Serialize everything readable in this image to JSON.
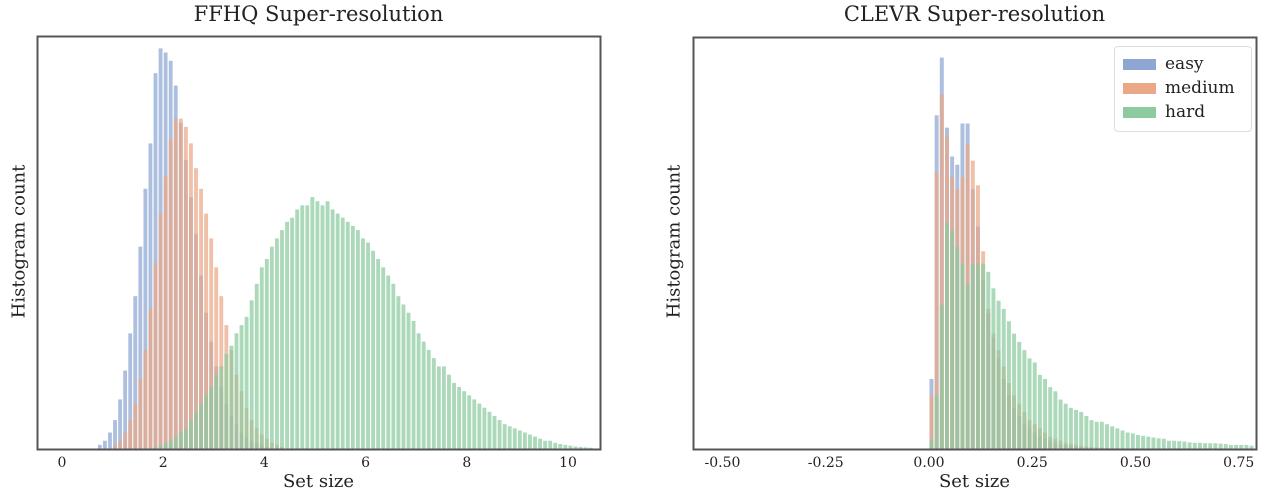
{
  "colors": {
    "easy": "#8ea6d2",
    "medium": "#eaa886",
    "hard": "#8ccaa0",
    "axis": "#555555"
  },
  "legend": {
    "items": [
      {
        "label": "easy",
        "key": "easy"
      },
      {
        "label": "medium",
        "key": "medium"
      },
      {
        "label": "hard",
        "key": "hard"
      }
    ]
  },
  "chart_data": [
    {
      "type": "bar",
      "subtype": "histogram",
      "title": "FFHQ Super-resolution",
      "xlabel": "Set size",
      "ylabel": "Histogram count",
      "xlim": [
        -0.5,
        10.6
      ],
      "xticks": [
        0,
        2,
        4,
        6,
        8,
        10
      ],
      "xtick_labels": [
        "0",
        "2",
        "4",
        "6",
        "8",
        "10"
      ],
      "y_ticks_visible": false,
      "grid": false,
      "legend": "none",
      "bin_width": 0.1,
      "series": [
        {
          "name": "easy",
          "bin_start": 0.7,
          "values": [
            0.01,
            0.02,
            0.04,
            0.07,
            0.12,
            0.19,
            0.28,
            0.37,
            0.49,
            0.63,
            0.74,
            0.91,
            0.97,
            0.96,
            0.94,
            0.88,
            0.79,
            0.7,
            0.61,
            0.52,
            0.42,
            0.33,
            0.26,
            0.2,
            0.15,
            0.11,
            0.08,
            0.06,
            0.04,
            0.03,
            0.02,
            0.015,
            0.01,
            0.005
          ]
        },
        {
          "name": "medium",
          "bin_start": 1.0,
          "values": [
            0.01,
            0.02,
            0.04,
            0.07,
            0.11,
            0.17,
            0.24,
            0.34,
            0.45,
            0.57,
            0.66,
            0.75,
            0.8,
            0.8,
            0.78,
            0.74,
            0.68,
            0.63,
            0.57,
            0.51,
            0.44,
            0.37,
            0.3,
            0.24,
            0.18,
            0.14,
            0.1,
            0.07,
            0.05,
            0.035,
            0.025,
            0.015,
            0.01,
            0.005
          ]
        },
        {
          "name": "hard",
          "bin_start": 1.8,
          "values": [
            0.005,
            0.01,
            0.015,
            0.02,
            0.03,
            0.04,
            0.05,
            0.07,
            0.09,
            0.11,
            0.13,
            0.15,
            0.18,
            0.2,
            0.23,
            0.25,
            0.28,
            0.3,
            0.32,
            0.36,
            0.4,
            0.44,
            0.46,
            0.49,
            0.51,
            0.53,
            0.55,
            0.56,
            0.58,
            0.59,
            0.59,
            0.61,
            0.6,
            0.59,
            0.6,
            0.58,
            0.57,
            0.56,
            0.55,
            0.54,
            0.53,
            0.51,
            0.5,
            0.48,
            0.46,
            0.44,
            0.42,
            0.4,
            0.37,
            0.35,
            0.33,
            0.31,
            0.28,
            0.26,
            0.24,
            0.22,
            0.2,
            0.2,
            0.18,
            0.16,
            0.15,
            0.14,
            0.13,
            0.12,
            0.11,
            0.1,
            0.09,
            0.08,
            0.07,
            0.06,
            0.055,
            0.05,
            0.045,
            0.04,
            0.035,
            0.03,
            0.025,
            0.02,
            0.02,
            0.015,
            0.012,
            0.01,
            0.008,
            0.006,
            0.005,
            0.004,
            0.003
          ]
        }
      ]
    },
    {
      "type": "bar",
      "subtype": "histogram",
      "title": "CLEVR Super-resolution",
      "xlabel": "Set size",
      "ylabel": "Histogram count",
      "xlim": [
        -0.57,
        0.78
      ],
      "xticks": [
        -0.5,
        -0.25,
        0.0,
        0.25,
        0.5,
        0.75
      ],
      "xtick_labels": [
        "-0.50",
        "-0.25",
        "0.00",
        "0.25",
        "0.50",
        "0.75"
      ],
      "y_ticks_visible": false,
      "grid": false,
      "legend": "upper right",
      "bin_width": 0.0125,
      "series": [
        {
          "name": "easy",
          "bin_start": 0.0,
          "values": [
            0.17,
            0.81,
            0.95,
            0.78,
            0.71,
            0.69,
            0.79,
            0.79,
            0.63,
            0.54,
            0.41,
            0.33,
            0.27,
            0.22,
            0.17,
            0.13,
            0.1,
            0.08,
            0.06,
            0.05,
            0.04,
            0.03,
            0.025,
            0.02,
            0.015,
            0.012,
            0.01,
            0.008,
            0.006,
            0.005,
            0.004,
            0.003,
            0.002,
            0.002,
            0.001,
            0.001,
            0.001
          ]
        },
        {
          "name": "medium",
          "bin_start": 0.0,
          "values": [
            0.13,
            0.67,
            0.86,
            0.76,
            0.66,
            0.63,
            0.66,
            0.74,
            0.7,
            0.64,
            0.48,
            0.34,
            0.28,
            0.24,
            0.2,
            0.16,
            0.13,
            0.11,
            0.09,
            0.07,
            0.06,
            0.05,
            0.04,
            0.03,
            0.025,
            0.02,
            0.015,
            0.012,
            0.01,
            0.008,
            0.006,
            0.005,
            0.004,
            0.003,
            0.002,
            0.002,
            0.001
          ]
        },
        {
          "name": "hard",
          "bin_start": 0.0,
          "values": [
            0.02,
            0.13,
            0.35,
            0.55,
            0.53,
            0.49,
            0.45,
            0.4,
            0.45,
            0.45,
            0.45,
            0.43,
            0.39,
            0.36,
            0.34,
            0.31,
            0.28,
            0.26,
            0.24,
            0.22,
            0.21,
            0.18,
            0.17,
            0.15,
            0.14,
            0.12,
            0.11,
            0.1,
            0.095,
            0.09,
            0.08,
            0.07,
            0.066,
            0.066,
            0.06,
            0.055,
            0.05,
            0.045,
            0.04,
            0.038,
            0.034,
            0.032,
            0.03,
            0.028,
            0.026,
            0.025,
            0.02,
            0.02,
            0.019,
            0.018,
            0.016,
            0.015,
            0.015,
            0.014,
            0.014,
            0.014,
            0.013,
            0.012,
            0.01,
            0.01,
            0.01,
            0.01,
            0.008
          ]
        }
      ]
    }
  ]
}
